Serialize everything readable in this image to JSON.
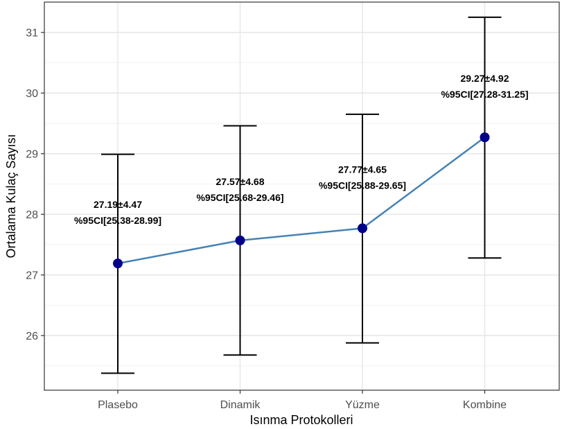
{
  "chart_data": {
    "type": "line",
    "xlabel": "Isınma Protokolleri",
    "ylabel": "Ortalama Kulaç Sayısı",
    "categories": [
      "Plasebo",
      "Dinamik",
      "Yüzme",
      "Kombine"
    ],
    "series": [
      {
        "values": [
          27.19,
          27.57,
          27.77,
          29.27
        ],
        "ci_lower": [
          25.38,
          25.68,
          25.88,
          27.28
        ],
        "ci_upper": [
          28.99,
          29.46,
          29.65,
          31.25
        ],
        "labels_line1": [
          "27.19±4.47",
          "27.57±4.68",
          "27.77±4.65",
          "29.27±4.92"
        ],
        "labels_line2": [
          "%95CI[25.38-28.99]",
          "%95CI[25.68-29.46]",
          "%95CI[25.88-29.65]",
          "%95CI[27.28-31.25]"
        ]
      }
    ],
    "ylim": [
      25.1,
      31.5
    ],
    "yticks": [
      26,
      27,
      28,
      29,
      30,
      31
    ],
    "grid": true,
    "line_color": "#4682b4",
    "point_color": "#00008b",
    "errorbar_color": "#000000"
  }
}
